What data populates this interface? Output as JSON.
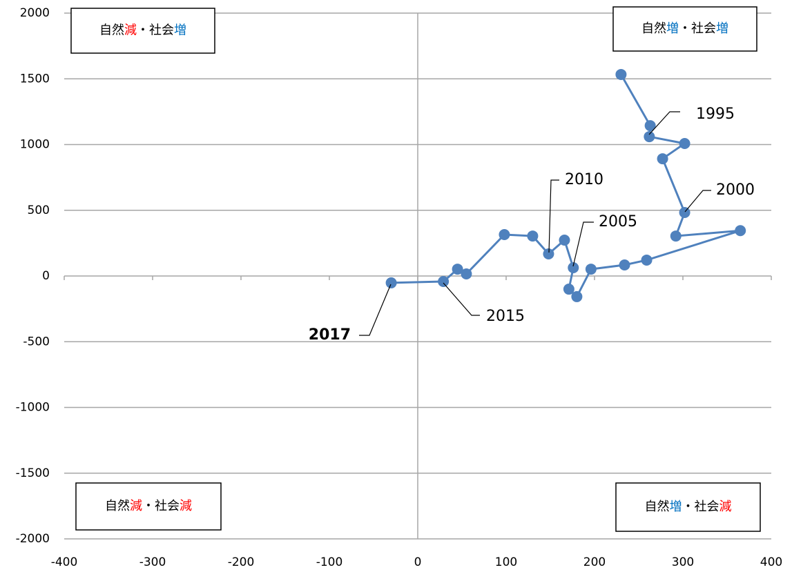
{
  "chart_data": {
    "type": "scatter-line",
    "x": [
      230,
      263,
      262,
      302,
      277,
      302,
      292,
      365,
      259,
      234,
      196,
      180,
      171,
      176,
      166,
      148,
      130,
      98,
      55,
      45,
      29,
      -30
    ],
    "series": [
      {
        "color": "#4f81bd",
        "values": [
          1533,
          1144,
          1060,
          1008,
          892,
          483,
          304,
          345,
          121,
          84,
          52,
          -157,
          -100,
          63,
          273,
          168,
          304,
          315,
          16,
          52,
          -42,
          -52
        ]
      }
    ],
    "xlim": [
      -400,
      400
    ],
    "xticks": [
      -400,
      -300,
      -200,
      -100,
      0,
      100,
      200,
      300,
      400
    ],
    "ylim": [
      -2000,
      2000
    ],
    "yticks": [
      -2000,
      -1500,
      -1000,
      -500,
      0,
      500,
      1000,
      1500,
      2000
    ],
    "grid": true,
    "annotations": [
      {
        "text": "1995"
      },
      {
        "text": "2000"
      },
      {
        "text": "2010"
      },
      {
        "text": "2005"
      },
      {
        "text": "2015"
      },
      {
        "text": "2017",
        "bold": true
      }
    ],
    "quadrants": [
      [
        {
          "text": "自然",
          "color": "#000000"
        },
        {
          "text": "減",
          "color": "#ff0000"
        },
        {
          "text": "・社会",
          "color": "#000000"
        },
        {
          "text": "増",
          "color": "#0070c0"
        }
      ],
      [
        {
          "text": "自然",
          "color": "#000000"
        },
        {
          "text": "増",
          "color": "#0070c0"
        },
        {
          "text": "・社会",
          "color": "#000000"
        },
        {
          "text": "増",
          "color": "#0070c0"
        }
      ],
      [
        {
          "text": "自然",
          "color": "#000000"
        },
        {
          "text": "減",
          "color": "#ff0000"
        },
        {
          "text": "・社会",
          "color": "#000000"
        },
        {
          "text": "減",
          "color": "#ff0000"
        }
      ],
      [
        {
          "text": "自然",
          "color": "#000000"
        },
        {
          "text": "増",
          "color": "#0070c0"
        },
        {
          "text": "・社会",
          "color": "#000000"
        },
        {
          "text": "減",
          "color": "#ff0000"
        }
      ]
    ]
  }
}
